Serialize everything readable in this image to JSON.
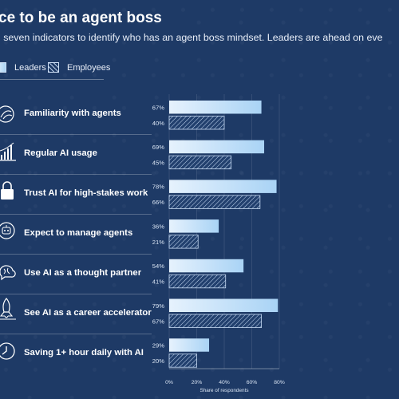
{
  "title": "ce to be an agent boss",
  "subtitle": "l seven indicators to identify who has an agent boss mindset. Leaders are ahead on eve",
  "legend": {
    "leaders": "Leaders",
    "employees": "Employees"
  },
  "colors": {
    "background": "#1e3a66",
    "leaders_start": "#e6f2fd",
    "leaders_end": "#a9d3f5",
    "employees_hatch": "#c8dcf5"
  },
  "chart_data": {
    "type": "bar",
    "orientation": "horizontal",
    "categories": [
      "Familiarity with agents",
      "Regular AI usage",
      "Trust AI for high-stakes work",
      "Expect to manage agents",
      "Use AI as a thought partner",
      "See AI as a career accelerator",
      "Saving 1+ hour daily with AI"
    ],
    "icons": [
      "agents-icon",
      "bar-growth-icon",
      "lock-icon",
      "robot-icon",
      "brain-icon",
      "rocket-icon",
      "clock-icon"
    ],
    "series": [
      {
        "name": "Leaders",
        "values": [
          67,
          69,
          78,
          36,
          54,
          79,
          29
        ]
      },
      {
        "name": "Employees",
        "values": [
          40,
          45,
          66,
          21,
          41,
          67,
          20
        ]
      }
    ],
    "value_labels": {
      "Leaders": [
        "67%",
        "69%",
        "78%",
        "36%",
        "54%",
        "79%",
        "29%"
      ],
      "Employees": [
        "40%",
        "45%",
        "66%",
        "21%",
        "41%",
        "67%",
        "20%"
      ]
    },
    "xlim": [
      0,
      80
    ],
    "xticks": [
      0,
      20,
      40,
      60,
      80
    ],
    "xtick_labels": [
      "0%",
      "20%",
      "40%",
      "60%",
      "80%"
    ],
    "xlabel": "Share of respondents",
    "grid": true,
    "legend_position": "top-left"
  }
}
